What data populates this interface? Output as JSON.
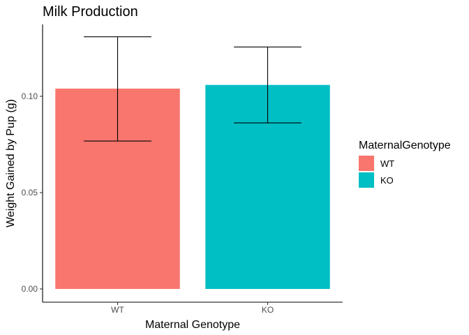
{
  "chart_data": {
    "type": "bar",
    "title": "Milk Production",
    "xlabel": "Maternal Genotype",
    "ylabel": "Weight Gained by Pup (g)",
    "categories": [
      "WT",
      "KO"
    ],
    "values": [
      0.104,
      0.1059
    ],
    "error_low": [
      0.0768,
      0.0862
    ],
    "error_high": [
      0.1309,
      0.1256
    ],
    "colors": [
      "#F8766D",
      "#00BFC4"
    ],
    "ylim": [
      0,
      0.137
    ],
    "yticks": [
      0.0,
      0.05,
      0.1
    ],
    "ytick_labels": [
      "0.00",
      "0.05",
      "0.10"
    ],
    "grid": false,
    "legend": {
      "title": "MaternalGenotype",
      "placement": "right",
      "entries": [
        "WT",
        "KO"
      ]
    }
  }
}
